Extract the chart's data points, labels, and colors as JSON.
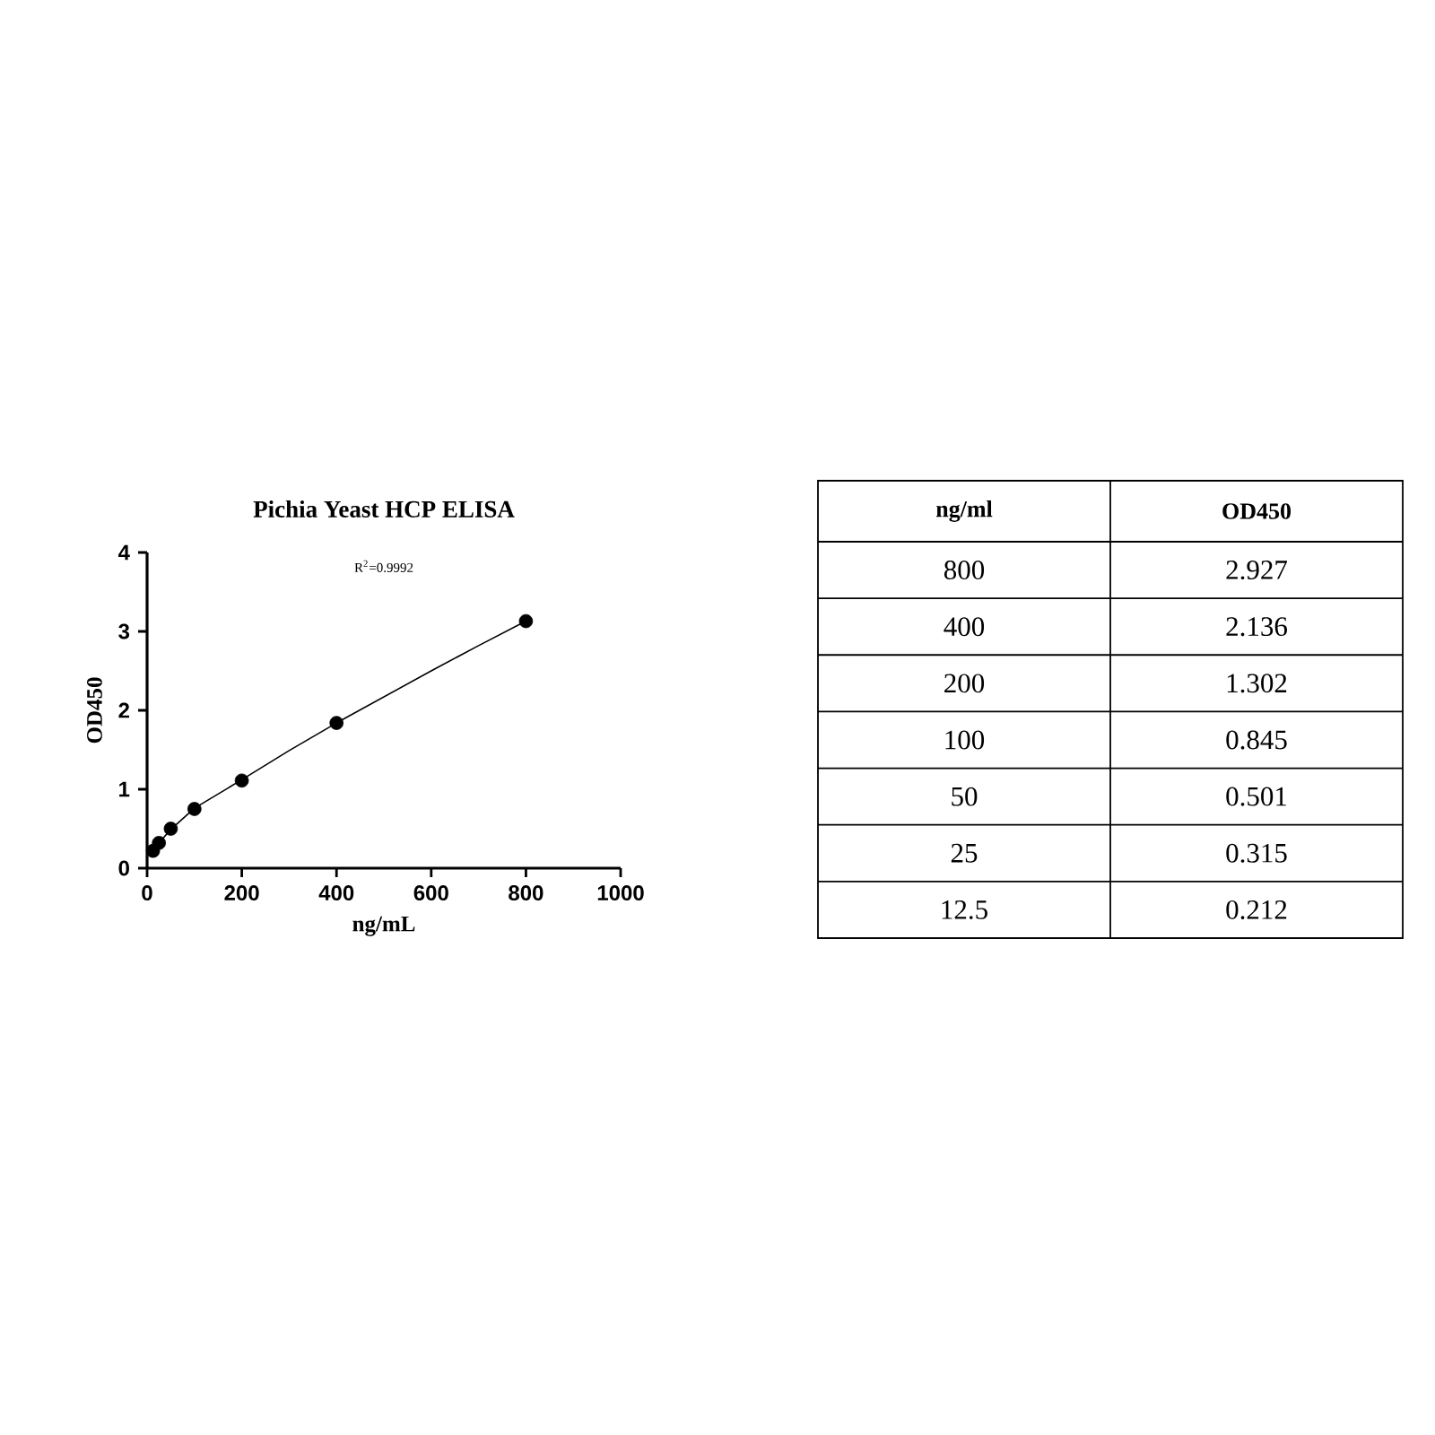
{
  "chart_data": [
    {
      "type": "scatter",
      "title": "Pichia Yeast HCP ELISA",
      "xlabel": "ng/mL",
      "ylabel": "OD450",
      "annotations": [
        "R$^{2}$=0.9992"
      ],
      "xlim": [
        0,
        1000
      ],
      "ylim": [
        0,
        4
      ],
      "xticks": [
        0,
        200,
        400,
        600,
        800,
        1000
      ],
      "yticks": [
        0,
        1,
        2,
        3,
        4
      ],
      "marker": "circle",
      "series": [
        {
          "type": "scatter",
          "color": "#000000",
          "x": [
            12.5,
            25,
            50,
            100,
            200,
            400,
            800
          ],
          "values": [
            0.22,
            0.32,
            0.5,
            0.75,
            1.11,
            1.84,
            3.13
          ]
        },
        {
          "type": "line",
          "color": "#000000",
          "marker": "none",
          "line_style": "solid",
          "x": [
            12.5,
            25,
            50,
            100,
            200,
            300,
            400,
            500,
            600,
            700,
            800
          ],
          "values": [
            0.21,
            0.32,
            0.49,
            0.76,
            1.12,
            1.49,
            1.84,
            2.17,
            2.5,
            2.82,
            3.13
          ]
        }
      ]
    },
    {
      "type": "other",
      "xlabel": "ng/ml",
      "ylabel": "OD450",
      "categories": [
        "800",
        "400",
        "200",
        "100",
        "50",
        "25",
        "12.5"
      ],
      "values": [
        2.927,
        2.136,
        1.302,
        0.845,
        0.501,
        0.315,
        0.212
      ],
      "data_labels": true
    }
  ]
}
